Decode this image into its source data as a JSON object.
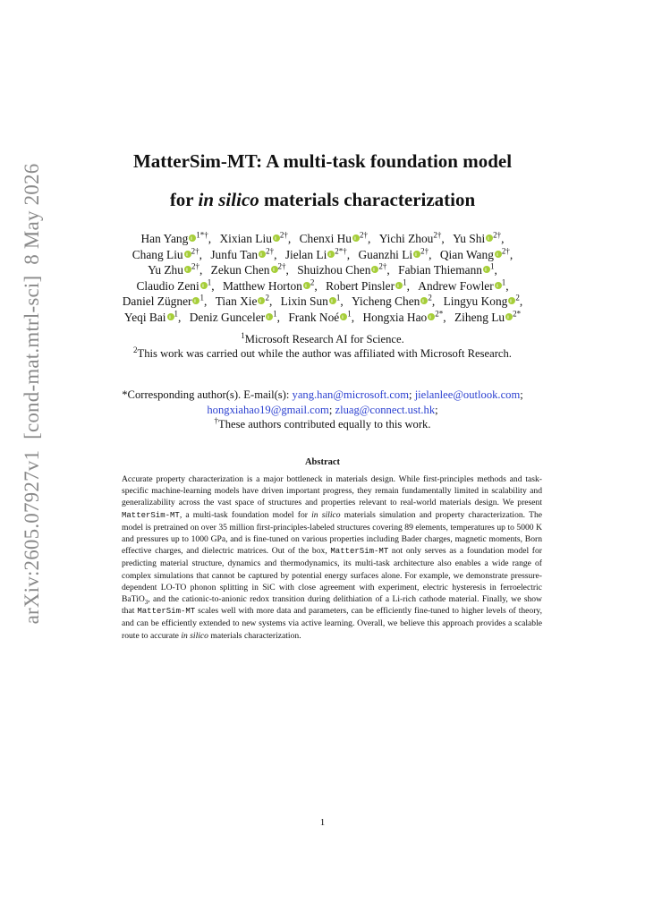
{
  "arxiv_stamp": "arXiv:2605.07927v1  [cond-mat.mtrl-sci]  8 May 2026",
  "title": {
    "line1": "MatterSim-MT: A multi-task foundation model",
    "line2": [
      {
        "text": "for ",
        "style": "normal"
      },
      {
        "text": "in silico",
        "style": "italic"
      },
      {
        "text": " materials characterization",
        "style": "normal"
      }
    ]
  },
  "authors": [
    [
      {
        "name": "Han Yang",
        "orcid": true,
        "sup": "1*†",
        "punct": ","
      },
      {
        "name": "Xixian Liu",
        "orcid": true,
        "sup": "2†",
        "punct": ","
      },
      {
        "name": "Chenxi Hu",
        "orcid": true,
        "sup": "2†",
        "punct": ","
      },
      {
        "name": "Yichi Zhou",
        "orcid": false,
        "sup": "2†",
        "punct": ","
      },
      {
        "name": "Yu Shi",
        "orcid": true,
        "sup": "2†",
        "punct": ","
      }
    ],
    [
      {
        "name": "Chang Liu",
        "orcid": true,
        "sup": "2†",
        "punct": ","
      },
      {
        "name": "Junfu Tan",
        "orcid": true,
        "sup": "2†",
        "punct": ","
      },
      {
        "name": "Jielan Li",
        "orcid": true,
        "sup": "2*†",
        "punct": ","
      },
      {
        "name": "Guanzhi Li",
        "orcid": true,
        "sup": "2†",
        "punct": ","
      },
      {
        "name": "Qian Wang",
        "orcid": true,
        "sup": "2†",
        "punct": ","
      }
    ],
    [
      {
        "name": "Yu Zhu",
        "orcid": true,
        "sup": "2†",
        "punct": ","
      },
      {
        "name": "Zekun Chen",
        "orcid": true,
        "sup": "2†",
        "punct": ","
      },
      {
        "name": "Shuizhou Chen",
        "orcid": true,
        "sup": "2†",
        "punct": ","
      },
      {
        "name": "Fabian Thiemann",
        "orcid": true,
        "sup": "1",
        "punct": ","
      }
    ],
    [
      {
        "name": "Claudio Zeni",
        "orcid": true,
        "sup": "1",
        "punct": ","
      },
      {
        "name": "Matthew Horton",
        "orcid": true,
        "sup": "2",
        "punct": ","
      },
      {
        "name": "Robert Pinsler",
        "orcid": true,
        "sup": "1",
        "punct": ","
      },
      {
        "name": "Andrew Fowler",
        "orcid": true,
        "sup": "1",
        "punct": ","
      }
    ],
    [
      {
        "name": "Daniel Zügner",
        "orcid": true,
        "sup": "1",
        "punct": ","
      },
      {
        "name": "Tian Xie",
        "orcid": true,
        "sup": "2",
        "punct": ","
      },
      {
        "name": "Lixin Sun",
        "orcid": true,
        "sup": "1",
        "punct": ","
      },
      {
        "name": "Yicheng Chen",
        "orcid": true,
        "sup": "2",
        "punct": ","
      },
      {
        "name": "Lingyu Kong",
        "orcid": true,
        "sup": "2",
        "punct": ","
      }
    ],
    [
      {
        "name": "Yeqi Bai",
        "orcid": true,
        "sup": "1",
        "punct": ","
      },
      {
        "name": "Deniz Gunceler",
        "orcid": true,
        "sup": "1",
        "punct": ","
      },
      {
        "name": "Frank Noé",
        "orcid": true,
        "sup": "1",
        "punct": ","
      },
      {
        "name": "Hongxia Hao",
        "orcid": true,
        "sup": "2*",
        "punct": ","
      },
      {
        "name": "Ziheng Lu",
        "orcid": true,
        "sup": "2*"
      }
    ]
  ],
  "affiliations": [
    {
      "sup": "1",
      "text": "Microsoft Research AI for Science."
    },
    {
      "sup": "2",
      "text": "This work was carried out while the author was affiliated with Microsoft Research."
    }
  ],
  "correspondence": {
    "label": "*Corresponding author(s). E-mail(s): ",
    "emails": [
      {
        "address": "yang.han@microsoft.com",
        "punct": ";"
      },
      {
        "address": "jielanlee@outlook.com",
        "punct": ";"
      },
      {
        "address": "hongxiahao19@gmail.com",
        "punct": ";"
      },
      {
        "address": "zluag@connect.ust.hk",
        "punct": ";"
      }
    ],
    "equal_contribution": {
      "mark": "†",
      "text": "These authors contributed equally to this work."
    }
  },
  "abstract": {
    "heading": "Abstract",
    "segments": [
      {
        "text": "Accurate property characterization is a major bottleneck in materials design. While first-principles methods and task-specific machine-learning models have driven important progress, they remain fundamentally limited in scalability and generalizability across the vast space of structures and properties relevant to real-world materials design. We present ",
        "style": "normal"
      },
      {
        "text": "MatterSim-MT",
        "style": "mono"
      },
      {
        "text": ", a multi-task foundation model for ",
        "style": "normal"
      },
      {
        "text": "in silico",
        "style": "italic"
      },
      {
        "text": " materials simulation and property characterization. The model is pretrained on over 35 million first-principles-labeled structures covering 89 elements, temperatures up to 5000 K and pressures up to 1000 GPa, and is fine-tuned on various properties including Bader charges, magnetic moments, Born effective charges, and dielectric matrices. Out of the box, ",
        "style": "normal"
      },
      {
        "text": "MatterSim-MT",
        "style": "mono"
      },
      {
        "text": " not only serves as a foundation model for predicting material structure, dynamics and thermodynamics, its multi-task architecture also enables a wide range of complex simulations that cannot be captured by potential energy surfaces alone. For example, we demonstrate pressure-dependent LO-TO phonon splitting in SiC with close agreement with experiment, electric hysteresis in ferroelectric BaTiO",
        "style": "normal"
      },
      {
        "text": "3",
        "style": "sub"
      },
      {
        "text": ", and the cationic-to-anionic redox transition during delithiation of a Li-rich cathode material. Finally, we show that ",
        "style": "normal"
      },
      {
        "text": "MatterSim-MT",
        "style": "mono"
      },
      {
        "text": " scales well with more data and parameters, can be efficiently fine-tuned to higher levels of theory, and can be efficiently extended to new systems via active learning. Overall, we believe this approach provides a scalable route to accurate ",
        "style": "normal"
      },
      {
        "text": "in silico",
        "style": "italic"
      },
      {
        "text": " materials characterization.",
        "style": "normal"
      }
    ]
  },
  "page_number": "1"
}
